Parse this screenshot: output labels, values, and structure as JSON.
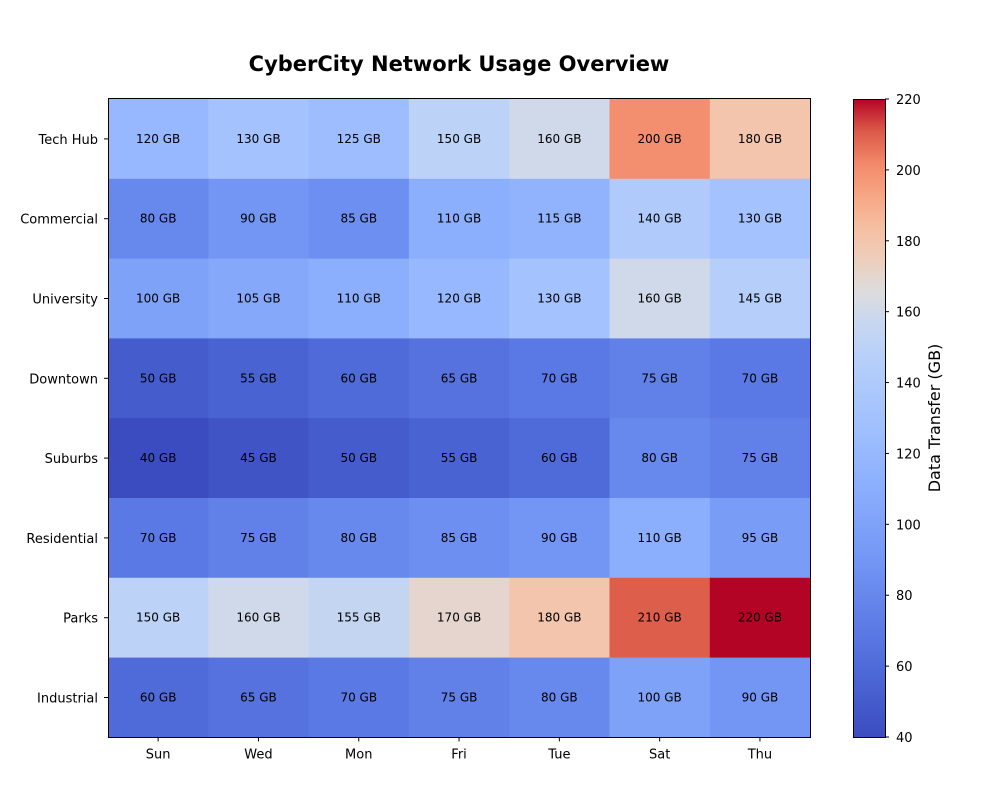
{
  "chart_data": {
    "type": "heatmap",
    "title": "CyberCity Network Usage Overview",
    "columns": [
      "Sun",
      "Wed",
      "Mon",
      "Fri",
      "Tue",
      "Sat",
      "Thu"
    ],
    "rows": [
      "Tech Hub",
      "Commercial",
      "University",
      "Downtown",
      "Suburbs",
      "Residential",
      "Parks",
      "Industrial"
    ],
    "values": [
      [
        120,
        130,
        125,
        150,
        160,
        200,
        180
      ],
      [
        80,
        90,
        85,
        110,
        115,
        140,
        130
      ],
      [
        100,
        105,
        110,
        120,
        130,
        160,
        145
      ],
      [
        50,
        55,
        60,
        65,
        70,
        75,
        70
      ],
      [
        40,
        45,
        50,
        55,
        60,
        80,
        75
      ],
      [
        70,
        75,
        80,
        85,
        90,
        110,
        95
      ],
      [
        150,
        160,
        155,
        170,
        180,
        210,
        220
      ],
      [
        60,
        65,
        70,
        75,
        80,
        100,
        90
      ]
    ],
    "cell_labels": [
      [
        "120 GB",
        "130 GB",
        "125 GB",
        "150 GB",
        "160 GB",
        "200 GB",
        "180 GB"
      ],
      [
        "80 GB",
        "90 GB",
        "85 GB",
        "110 GB",
        "115 GB",
        "140 GB",
        "130 GB"
      ],
      [
        "100 GB",
        "105 GB",
        "110 GB",
        "120 GB",
        "130 GB",
        "160 GB",
        "145 GB"
      ],
      [
        "50 GB",
        "55 GB",
        "60 GB",
        "65 GB",
        "70 GB",
        "75 GB",
        "70 GB"
      ],
      [
        "40 GB",
        "45 GB",
        "50 GB",
        "55 GB",
        "60 GB",
        "80 GB",
        "75 GB"
      ],
      [
        "70 GB",
        "75 GB",
        "80 GB",
        "85 GB",
        "90 GB",
        "110 GB",
        "95 GB"
      ],
      [
        "150 GB",
        "160 GB",
        "155 GB",
        "170 GB",
        "180 GB",
        "210 GB",
        "220 GB"
      ],
      [
        "60 GB",
        "65 GB",
        "70 GB",
        "75 GB",
        "80 GB",
        "100 GB",
        "90 GB"
      ]
    ],
    "colorbar": {
      "label": "Data Transfer (GB)",
      "range": [
        40,
        220
      ],
      "ticks": [
        40,
        60,
        80,
        100,
        120,
        140,
        160,
        180,
        200,
        220
      ],
      "colormap": "coolwarm"
    }
  }
}
